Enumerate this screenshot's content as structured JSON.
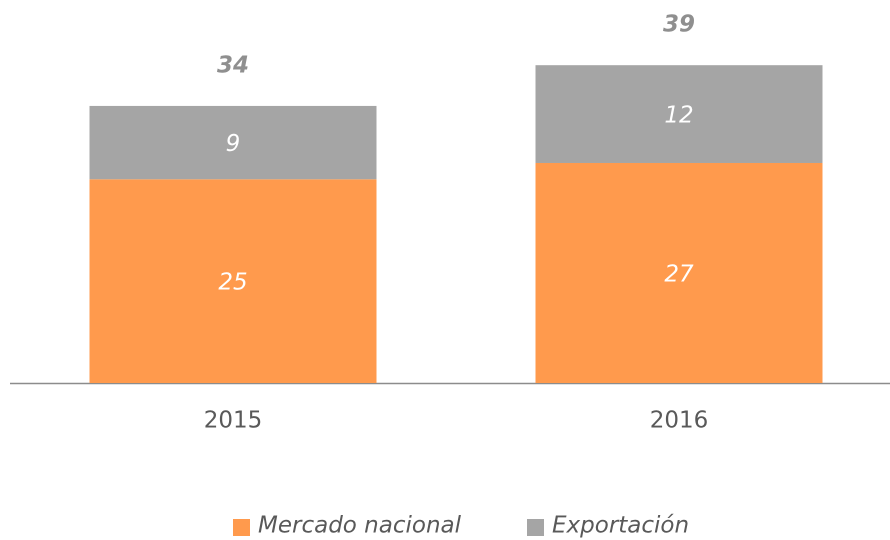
{
  "chart_data": {
    "type": "stacked_bar",
    "categories": [
      "2015",
      "2016"
    ],
    "series": [
      {
        "name": "Mercado nacional",
        "color": "#ff9a4d",
        "values": [
          25,
          27
        ]
      },
      {
        "name": "Exportación",
        "color": "#a5a5a5",
        "values": [
          9,
          12
        ]
      }
    ],
    "totals": [
      34,
      39
    ],
    "ylim": [
      0,
      47
    ],
    "legend": "bottom"
  }
}
